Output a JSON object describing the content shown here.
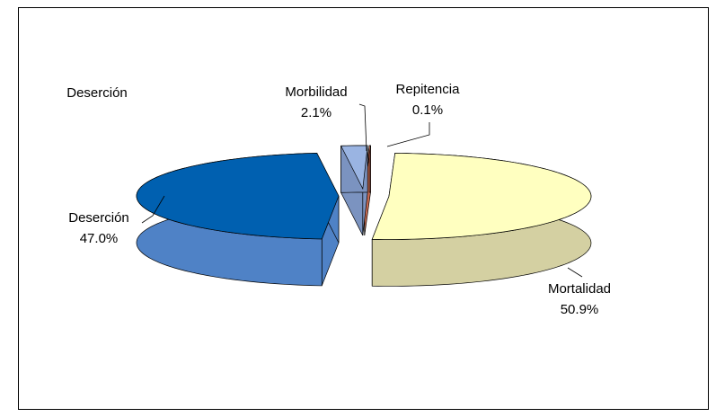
{
  "chart_data": {
    "type": "pie3d",
    "title": "Deserción",
    "categories": [
      "Mortalidad",
      "Deserción",
      "Morbilidad",
      "Repitencia"
    ],
    "values": [
      50.9,
      47.0,
      2.1,
      0.1
    ],
    "value_labels": [
      "50.9%",
      "47.0%",
      "2.1%",
      "0.1%"
    ],
    "colors": [
      "#ffffc0",
      "#0060b0",
      "#9ab4e2",
      "#f28462"
    ],
    "side_colors": [
      "#d4d0a2",
      "#4f82c6",
      "#7b93c0",
      "#c96a50"
    ]
  }
}
